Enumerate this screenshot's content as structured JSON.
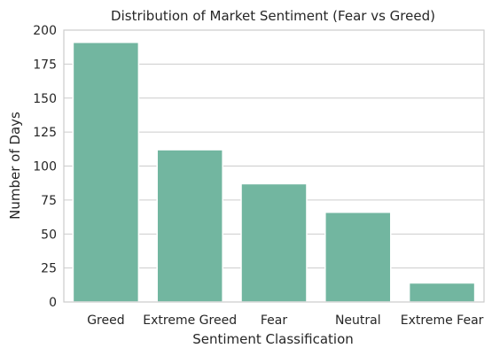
{
  "chart_data": {
    "type": "bar",
    "title": "Distribution of Market Sentiment (Fear vs Greed)",
    "xlabel": "Sentiment Classification",
    "ylabel": "Number of Days",
    "categories": [
      "Greed",
      "Extreme Greed",
      "Fear",
      "Neutral",
      "Extreme Fear"
    ],
    "values": [
      191,
      112,
      87,
      66,
      14
    ],
    "ylim": [
      0,
      200
    ],
    "yticks": [
      0,
      25,
      50,
      75,
      100,
      125,
      150,
      175,
      200
    ],
    "grid": "horizontal",
    "bar_color": "#72b6a0",
    "bar_edge_color": "#ffffff"
  }
}
